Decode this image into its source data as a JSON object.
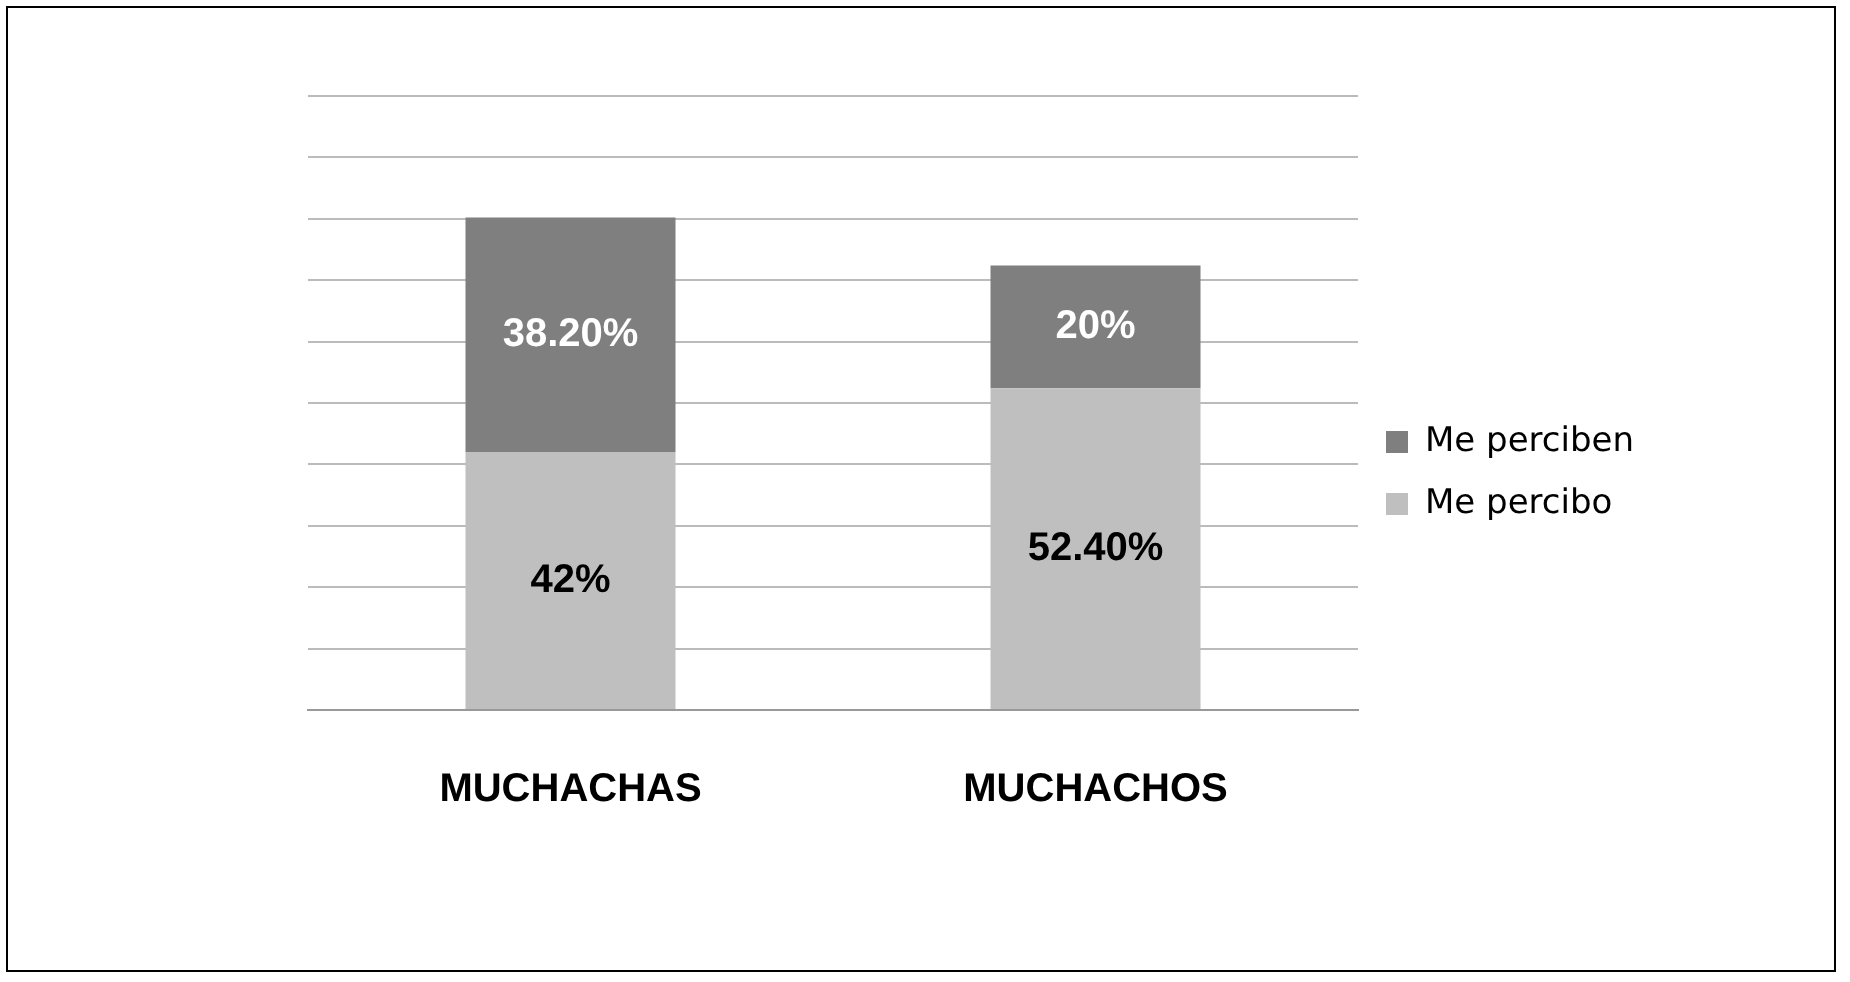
{
  "chart_data": {
    "type": "bar",
    "stacked": true,
    "categories": [
      "MUCHACHAS",
      "MUCHACHOS"
    ],
    "series": [
      {
        "name": "Me percibo",
        "color": "#bfbfbf",
        "values": [
          42,
          52.4
        ],
        "value_labels": [
          "42%",
          "52.40%"
        ]
      },
      {
        "name": "Me perciben",
        "color": "#7f7f7f",
        "values": [
          38.2,
          20
        ],
        "value_labels": [
          "38.20%",
          "20%"
        ]
      }
    ],
    "ylim": [
      0,
      100
    ],
    "yticks": [
      {
        "value": 0,
        "label": null
      },
      {
        "value": 10,
        "label": null
      },
      {
        "value": 20,
        "label": null
      },
      {
        "value": 30,
        "label": null
      },
      {
        "value": 40,
        "label": null
      },
      {
        "value": 50,
        "label": null
      },
      {
        "value": 60,
        "label": null
      },
      {
        "value": 70,
        "label": null
      },
      {
        "value": 80,
        "label": null
      },
      {
        "value": 90,
        "label": null
      },
      {
        "value": 100,
        "label": null
      }
    ],
    "grid": "y",
    "legend": "right",
    "tick_labels": "x"
  }
}
